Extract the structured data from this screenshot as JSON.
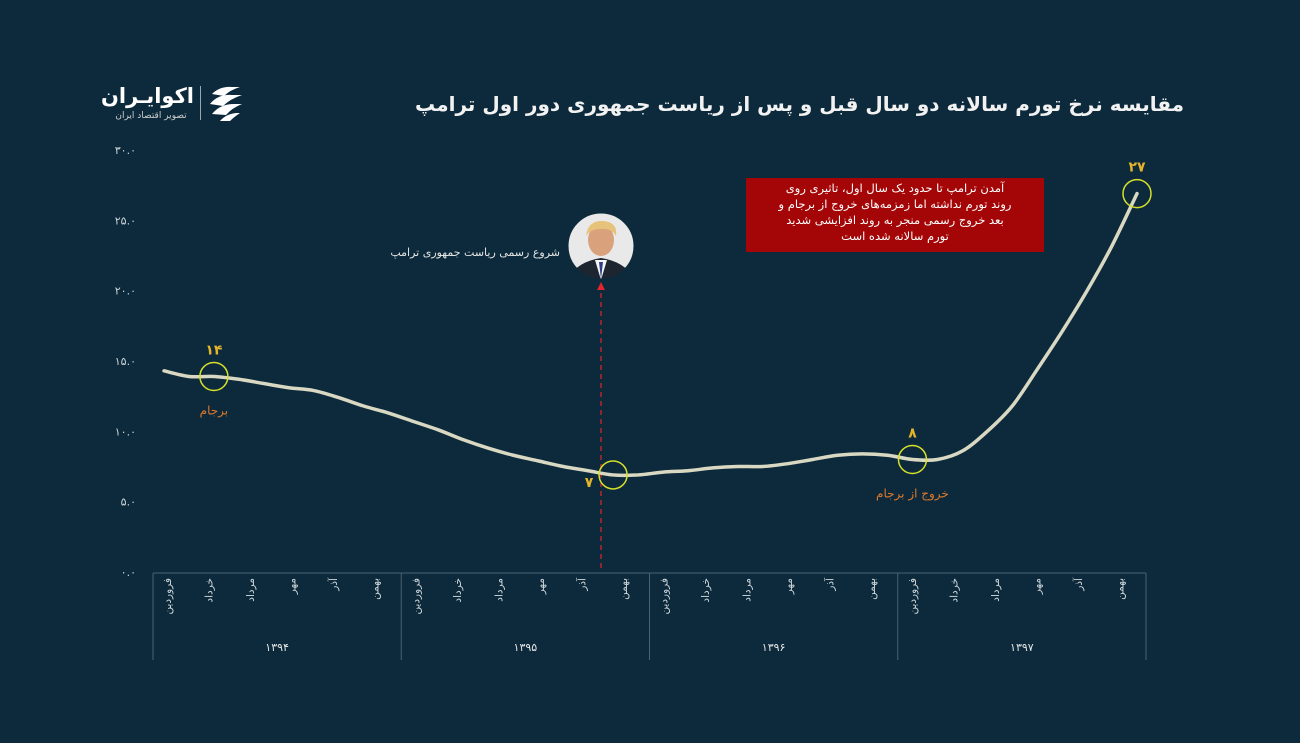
{
  "title": "مقایسه نرخ تورم سالانه دو سال قبل و پس از ریاست جمهوری دور اول ترامپ",
  "logo": {
    "name": "اکوایـران",
    "subtitle": "تصویر اقتصاد ایران"
  },
  "note": {
    "lines": [
      "آمدن ترامپ تا حدود یک سال اول، تاثیری روی",
      "روند تورم نداشته اما زمزمه‌های خروج از برجام و",
      "بعد خروج رسمی منجر به روند افزایشی شدید",
      "تورم سالانه شده است"
    ]
  },
  "trump_label": "شروع رسمی ریاست جمهوری ترامپ",
  "colors": {
    "background": "#0c2a3b",
    "line": "#d9d8c2",
    "marker": "#d6e02a",
    "data_label": "#e4b52a",
    "event_label": "#e0782a",
    "note_bg": "#a40607",
    "trump_line": "#e0262a"
  },
  "chart_data": {
    "type": "line",
    "title": "مقایسه نرخ تورم سالانه دو سال قبل و پس از ریاست جمهوری دور اول ترامپ",
    "ylim": [
      0,
      30
    ],
    "yticks": [
      "۰.۰",
      "۵.۰",
      "۱۰.۰",
      "۱۵.۰",
      "۲۰.۰",
      "۲۵.۰",
      "۳۰.۰"
    ],
    "grid": false,
    "years": [
      "۱۳۹۴",
      "۱۳۹۵",
      "۱۳۹۶",
      "۱۳۹۷"
    ],
    "months": [
      "فروردین",
      "خرداد",
      "مرداد",
      "مهر",
      "آذر",
      "بهمن"
    ],
    "values": [
      14.3,
      13.9,
      13.9,
      13.7,
      13.4,
      13.1,
      12.9,
      12.4,
      11.8,
      11.3,
      10.7,
      10.1,
      9.4,
      8.8,
      8.3,
      7.9,
      7.5,
      7.2,
      6.9,
      6.9,
      7.1,
      7.2,
      7.4,
      7.5,
      7.5,
      7.7,
      8.0,
      8.3,
      8.4,
      8.3,
      8.0,
      8.0,
      8.6,
      10.0,
      11.8,
      14.4,
      17.1,
      20.0,
      23.2,
      26.9
    ],
    "highlights": [
      {
        "index": 2,
        "label": "۱۴",
        "event": "برجام"
      },
      {
        "index": 18,
        "label": "۷"
      },
      {
        "index": 30,
        "label": "۸",
        "event": "خروج از برجام"
      },
      {
        "index": 39,
        "label": "۲۷"
      }
    ],
    "trump_start_index": 19
  }
}
